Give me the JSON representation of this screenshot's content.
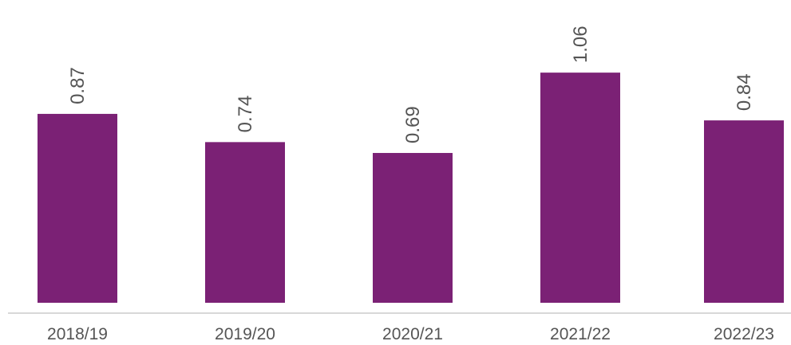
{
  "chart_data": {
    "type": "bar",
    "categories": [
      "2018/19",
      "2019/20",
      "2020/21",
      "2021/22",
      "2022/23"
    ],
    "values": [
      0.87,
      0.74,
      0.69,
      1.06,
      0.84
    ],
    "color": "#7b2175",
    "ylim": [
      0,
      1.2
    ]
  }
}
